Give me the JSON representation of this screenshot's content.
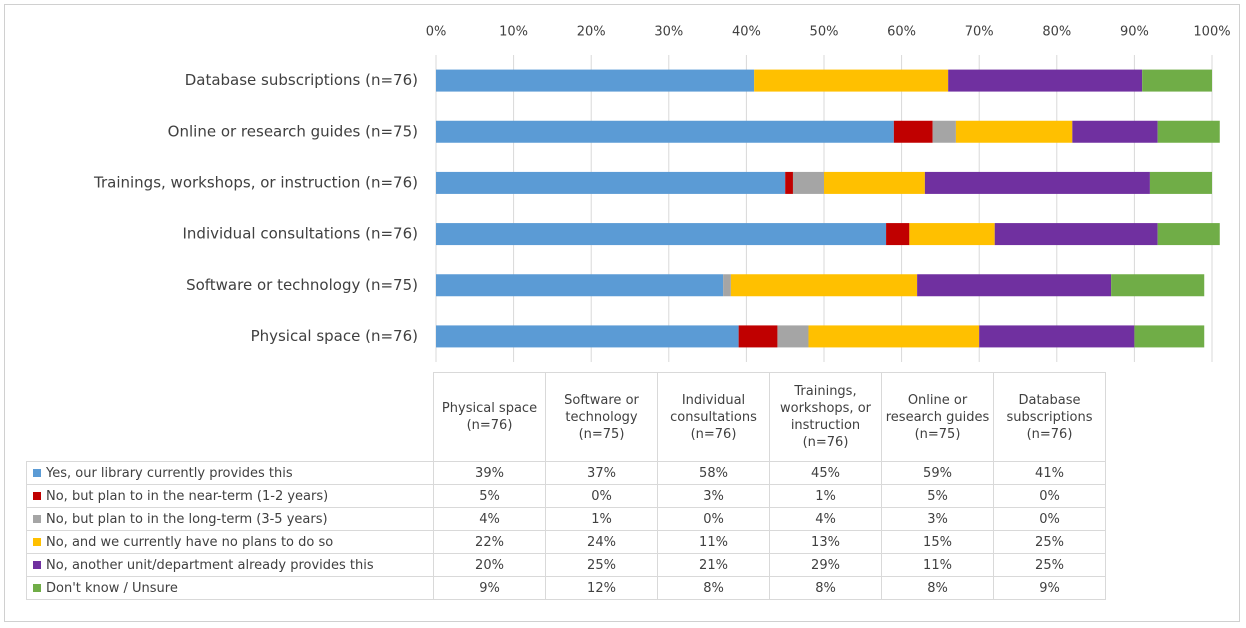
{
  "chart_data": {
    "type": "stacked-bar-horizontal",
    "categories": [
      "Physical space (n=76)",
      "Software or technology (n=75)",
      "Individual consultations (n=76)",
      "Trainings, workshops, or instruction (n=76)",
      "Online or research guides (n=75)",
      "Database subscriptions (n=76)"
    ],
    "series": [
      {
        "name": "Yes, our library currently provides this",
        "color": "#5b9bd5",
        "values": [
          39,
          37,
          58,
          45,
          59,
          41
        ],
        "value_labels": [
          "39%",
          "37%",
          "58%",
          "45%",
          "59%",
          "41%"
        ]
      },
      {
        "name": "No, but plan to in the near-term (1-2 years)",
        "color": "#c00000",
        "values": [
          5,
          0,
          3,
          1,
          5,
          0
        ],
        "value_labels": [
          "5%",
          "0%",
          "3%",
          "1%",
          "5%",
          "0%"
        ]
      },
      {
        "name": "No, but plan to in the long-term (3-5 years)",
        "color": "#a5a5a5",
        "values": [
          4,
          1,
          0,
          4,
          3,
          0
        ],
        "value_labels": [
          "4%",
          "1%",
          "0%",
          "4%",
          "3%",
          "0%"
        ]
      },
      {
        "name": "No, and we currently have no plans to do so",
        "color": "#ffc000",
        "values": [
          22,
          24,
          11,
          13,
          15,
          25
        ],
        "value_labels": [
          "22%",
          "24%",
          "11%",
          "13%",
          "15%",
          "25%"
        ]
      },
      {
        "name": "No, another unit/department already provides this",
        "color": "#7030a0",
        "values": [
          20,
          25,
          21,
          29,
          11,
          25
        ],
        "value_labels": [
          "20%",
          "25%",
          "21%",
          "29%",
          "11%",
          "25%"
        ]
      },
      {
        "name": "Don't know / Unsure",
        "color": "#70ad47",
        "values": [
          9,
          12,
          8,
          8,
          8,
          9
        ],
        "value_labels": [
          "9%",
          "12%",
          "8%",
          "8%",
          "8%",
          "9%"
        ]
      }
    ],
    "xlim": [
      0,
      100
    ],
    "xticks": [
      {
        "value": 0,
        "label": "0%"
      },
      {
        "value": 10,
        "label": "10%"
      },
      {
        "value": 20,
        "label": "20%"
      },
      {
        "value": 30,
        "label": "30%"
      },
      {
        "value": 40,
        "label": "40%"
      },
      {
        "value": 50,
        "label": "50%"
      },
      {
        "value": 60,
        "label": "60%"
      },
      {
        "value": 70,
        "label": "70%"
      },
      {
        "value": 80,
        "label": "80%"
      },
      {
        "value": 90,
        "label": "90%"
      },
      {
        "value": 100,
        "label": "100%"
      }
    ],
    "grid": true
  }
}
